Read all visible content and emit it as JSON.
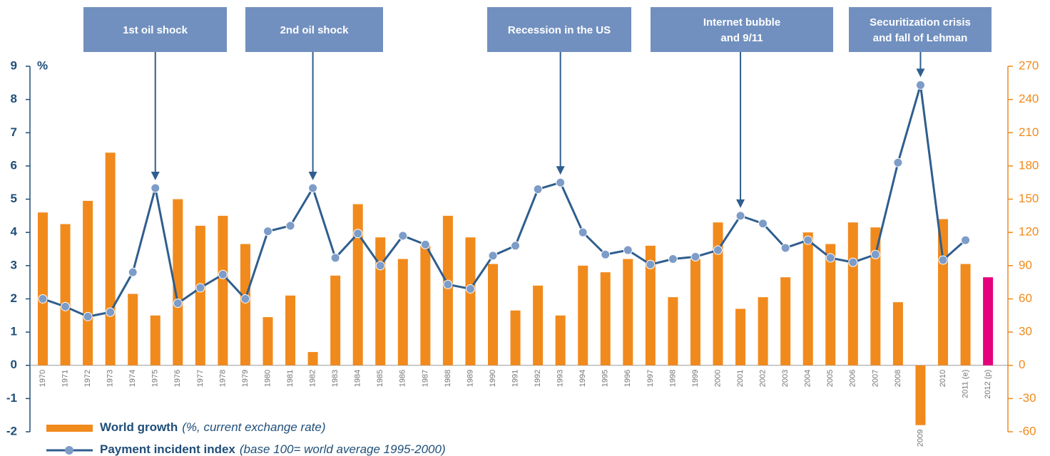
{
  "chart_data": {
    "type": "bar_line",
    "ylabel": "%",
    "categories": [
      "1970",
      "1971",
      "1972",
      "1973",
      "1974",
      "1975",
      "1976",
      "1977",
      "1978",
      "1979",
      "1980",
      "1981",
      "1982",
      "1983",
      "1984",
      "1985",
      "1986",
      "1987",
      "1988",
      "1989",
      "1990",
      "1991",
      "1992",
      "1993",
      "1994",
      "1995",
      "1996",
      "1997",
      "1998",
      "1999",
      "2000",
      "2001",
      "2002",
      "2003",
      "2004",
      "2005",
      "2006",
      "2007",
      "2008",
      "2009",
      "2010",
      "2011 (e)",
      "2012 (p)"
    ],
    "series": [
      {
        "name": "World growth",
        "note": "(%, current exchange rate)",
        "type": "bar",
        "color": "#f18a1c",
        "point_colors": [
          "#f18a1c",
          "#f18a1c",
          "#f18a1c",
          "#f18a1c",
          "#f18a1c",
          "#f18a1c",
          "#f18a1c",
          "#f18a1c",
          "#f18a1c",
          "#f18a1c",
          "#f18a1c",
          "#f18a1c",
          "#f18a1c",
          "#f18a1c",
          "#f18a1c",
          "#f18a1c",
          "#f18a1c",
          "#f18a1c",
          "#f18a1c",
          "#f18a1c",
          "#f18a1c",
          "#f18a1c",
          "#f18a1c",
          "#f18a1c",
          "#f18a1c",
          "#f18a1c",
          "#f18a1c",
          "#f18a1c",
          "#f18a1c",
          "#f18a1c",
          "#f18a1c",
          "#f18a1c",
          "#f18a1c",
          "#f18a1c",
          "#f18a1c",
          "#f18a1c",
          "#f18a1c",
          "#f18a1c",
          "#f18a1c",
          "#f18a1c",
          "#f18a1c",
          "#f18a1c",
          "#e5007e"
        ],
        "values": [
          4.6,
          4.25,
          4.95,
          6.4,
          2.15,
          1.5,
          5.0,
          4.2,
          4.5,
          3.65,
          1.45,
          2.1,
          0.4,
          2.7,
          4.85,
          3.85,
          3.2,
          3.6,
          4.5,
          3.85,
          3.05,
          1.65,
          2.4,
          1.5,
          3.0,
          2.8,
          3.2,
          3.6,
          2.05,
          3.2,
          4.3,
          1.7,
          2.05,
          2.65,
          4.0,
          3.65,
          4.3,
          4.15,
          1.9,
          -1.8,
          4.4,
          3.05,
          2.65
        ]
      },
      {
        "name": "Payment incident index",
        "note": "(base 100= world average 1995-2000)",
        "type": "line",
        "axis": "y2",
        "color": "#2f5e8e",
        "marker_color": "#7d9cc8",
        "values": [
          60,
          53,
          44,
          48,
          84,
          160,
          56,
          70,
          82,
          60,
          121,
          126,
          160,
          97,
          119,
          90,
          117,
          109,
          73,
          69,
          99,
          108,
          159,
          165,
          120,
          100,
          104,
          91,
          96,
          98,
          104,
          135,
          128,
          106,
          113,
          97,
          93,
          100,
          183,
          253,
          95,
          113,
          null
        ]
      }
    ],
    "ylim": [
      -2,
      9
    ],
    "yticks": [
      -2,
      -1,
      0,
      1,
      2,
      3,
      4,
      5,
      6,
      7,
      8,
      9
    ],
    "y2lim": [
      -60,
      270
    ],
    "y2ticks": [
      -60,
      -30,
      0,
      30,
      60,
      90,
      120,
      150,
      180,
      210,
      240,
      270
    ],
    "annotations": [
      {
        "lines": [
          "1st oil shock"
        ]
      },
      {
        "lines": [
          "2nd oil shock"
        ]
      },
      {
        "lines": [
          "Recession in the US"
        ]
      },
      {
        "lines": [
          "Internet bubble",
          "and 9/11"
        ]
      },
      {
        "lines": [
          "Securitization crisis",
          "and fall of Lehman"
        ]
      }
    ]
  }
}
